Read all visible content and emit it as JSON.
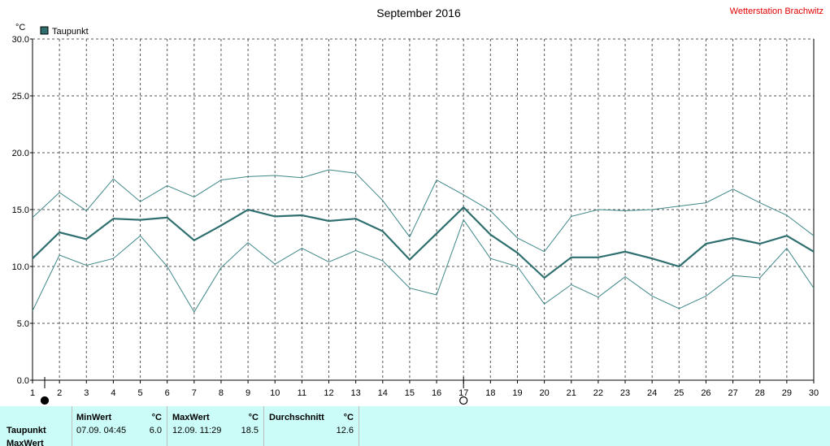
{
  "header": {
    "title": "September 2016",
    "station": "Wetterstation Brachwitz"
  },
  "colors": {
    "series": "#2f6f6f",
    "thin": "#3f8787",
    "station": "#e00000",
    "stats_bg": "#ccfcf8"
  },
  "chart_data": {
    "type": "line",
    "ylabel": "°C",
    "ylim": [
      0,
      30
    ],
    "yticks": [
      "0.0",
      "5.0",
      "10.0",
      "15.0",
      "20.0",
      "25.0",
      "30.0"
    ],
    "x": [
      1,
      2,
      3,
      4,
      5,
      6,
      7,
      8,
      9,
      10,
      11,
      12,
      13,
      14,
      15,
      16,
      17,
      18,
      19,
      20,
      21,
      22,
      23,
      24,
      25,
      26,
      27,
      28,
      29,
      30
    ],
    "grid": true,
    "legend": "top-left",
    "series": [
      {
        "name": "Taupunkt",
        "values": [
          10.7,
          13.0,
          12.4,
          14.2,
          14.1,
          14.3,
          12.3,
          13.6,
          15.0,
          14.4,
          14.5,
          14.0,
          14.2,
          13.1,
          10.6,
          12.9,
          15.2,
          12.8,
          11.2,
          9.0,
          10.8,
          10.8,
          11.3,
          10.7,
          10.0,
          12.0,
          12.5,
          12.0,
          12.7,
          11.3
        ],
        "style": "bold"
      },
      {
        "values": [
          14.3,
          16.5,
          14.9,
          17.7,
          15.7,
          17.1,
          16.1,
          17.6,
          17.9,
          18.0,
          17.8,
          18.5,
          18.2,
          15.8,
          12.6,
          17.6,
          16.3,
          14.9,
          12.5,
          11.3,
          14.4,
          15.0,
          14.9,
          15.0,
          15.3,
          15.6,
          16.8,
          15.6,
          14.5,
          12.7
        ],
        "style": "thin"
      },
      {
        "values": [
          6.1,
          11.0,
          10.1,
          10.7,
          12.7,
          10.0,
          6.0,
          9.9,
          12.1,
          10.2,
          11.6,
          10.4,
          11.4,
          10.5,
          8.1,
          7.5,
          14.1,
          10.7,
          10.0,
          6.7,
          8.4,
          7.3,
          9.1,
          7.4,
          6.3,
          7.4,
          9.2,
          9.0,
          11.6,
          8.1
        ],
        "style": "thin"
      }
    ],
    "markers": [
      {
        "day": 1,
        "symbol": "new-moon"
      },
      {
        "day": 17,
        "symbol": "full-moon"
      }
    ]
  },
  "stats": {
    "row1_label": "Taupunkt",
    "row2_label": "MaxWert",
    "min_header": "MinWert",
    "min_unit": "°C",
    "min_time": "07.09.  04:45",
    "min_value": "6.0",
    "max_header": "MaxWert",
    "max_unit": "°C",
    "max_time": "12.09.  11:29",
    "max_value": "18.5",
    "avg_header": "Durchschnitt",
    "avg_unit": "°C",
    "avg_value": "12.6"
  }
}
